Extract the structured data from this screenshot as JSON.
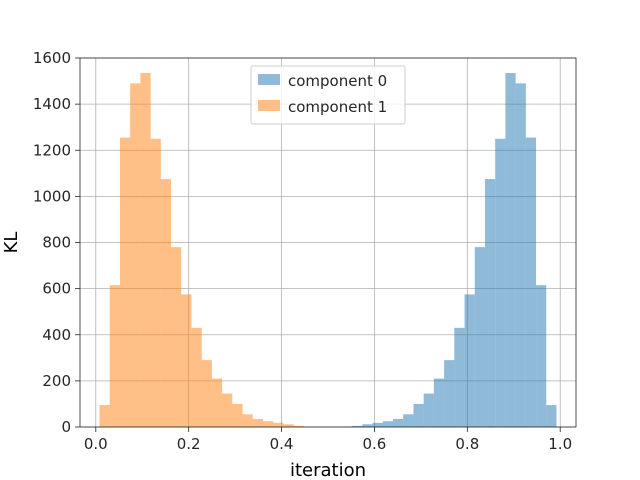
{
  "chart_data": {
    "type": "bar",
    "subtype": "histogram",
    "xlabel": "iteration",
    "ylabel": "KL",
    "xlim": [
      -0.034,
      1.034
    ],
    "ylim": [
      0,
      1600
    ],
    "xticks": [
      0.0,
      0.2,
      0.4,
      0.6,
      0.8,
      1.0
    ],
    "xtick_labels": [
      "0.0",
      "0.2",
      "0.4",
      "0.6",
      "0.8",
      "1.0"
    ],
    "yticks": [
      0,
      200,
      400,
      600,
      800,
      1000,
      1200,
      1400,
      1600
    ],
    "ytick_labels": [
      "0",
      "200",
      "400",
      "600",
      "800",
      "1000",
      "1200",
      "1400",
      "1600"
    ],
    "grid": true,
    "legend_position": "upper-center",
    "series": [
      {
        "name": "component 0",
        "color": "#1f77b4",
        "alpha": 0.5,
        "bins": [
          [
            0.53,
            0.552,
            2
          ],
          [
            0.552,
            0.574,
            5
          ],
          [
            0.574,
            0.596,
            12
          ],
          [
            0.596,
            0.618,
            18
          ],
          [
            0.618,
            0.64,
            25
          ],
          [
            0.64,
            0.662,
            35
          ],
          [
            0.662,
            0.684,
            55
          ],
          [
            0.684,
            0.706,
            100
          ],
          [
            0.706,
            0.728,
            145
          ],
          [
            0.728,
            0.75,
            210
          ],
          [
            0.75,
            0.772,
            290
          ],
          [
            0.772,
            0.794,
            430
          ],
          [
            0.794,
            0.816,
            575
          ],
          [
            0.816,
            0.838,
            780
          ],
          [
            0.838,
            0.86,
            1075
          ],
          [
            0.86,
            0.882,
            1250
          ],
          [
            0.882,
            0.904,
            1535
          ],
          [
            0.904,
            0.926,
            1490
          ],
          [
            0.926,
            0.948,
            1255
          ],
          [
            0.948,
            0.97,
            615
          ],
          [
            0.97,
            0.992,
            95
          ]
        ]
      },
      {
        "name": "component 1",
        "color": "#ff7f0e",
        "alpha": 0.5,
        "bins": [
          [
            0.008,
            0.03,
            95
          ],
          [
            0.03,
            0.052,
            615
          ],
          [
            0.052,
            0.074,
            1255
          ],
          [
            0.074,
            0.096,
            1490
          ],
          [
            0.096,
            0.118,
            1535
          ],
          [
            0.118,
            0.14,
            1250
          ],
          [
            0.14,
            0.162,
            1075
          ],
          [
            0.162,
            0.184,
            780
          ],
          [
            0.184,
            0.206,
            575
          ],
          [
            0.206,
            0.228,
            430
          ],
          [
            0.228,
            0.25,
            290
          ],
          [
            0.25,
            0.272,
            210
          ],
          [
            0.272,
            0.294,
            145
          ],
          [
            0.294,
            0.316,
            100
          ],
          [
            0.316,
            0.338,
            55
          ],
          [
            0.338,
            0.36,
            35
          ],
          [
            0.36,
            0.382,
            25
          ],
          [
            0.382,
            0.404,
            18
          ],
          [
            0.404,
            0.426,
            12
          ],
          [
            0.426,
            0.448,
            5
          ],
          [
            0.448,
            0.47,
            2
          ]
        ]
      }
    ]
  }
}
